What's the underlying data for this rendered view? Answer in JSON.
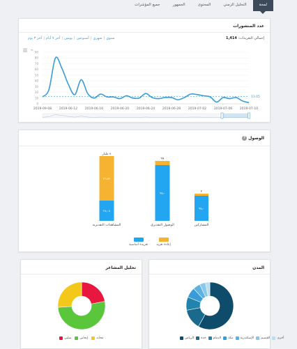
{
  "tabs": [
    {
      "label": "لمحة",
      "active": true
    },
    {
      "label": "التحليل الزمني"
    },
    {
      "label": "المحتوى"
    },
    {
      "label": "الجمهور"
    },
    {
      "label": "جميع المؤشرات"
    }
  ],
  "posts_panel": {
    "title": "عدد المنشورات",
    "total_label": "إجمالي التغريدات:",
    "total_value": "1,414",
    "ranges": [
      "سنوي",
      "شهري",
      "أسبوعين",
      "يومين",
      "آخر ٧ أيام",
      "آخر ٣ يوم"
    ],
    "avg_label": "13.05",
    "chart_data": {
      "type": "line",
      "x": [
        "2019-09-08",
        "2019-06-09",
        "2019-06-10",
        "2019-06-11",
        "2019-06-12",
        "2019-06-13",
        "2019-06-14",
        "2019-06-15",
        "2019-06-16",
        "2019-06-17",
        "2019-06-18",
        "2019-06-19",
        "2019-06-20",
        "2019-06-21",
        "2019-06-22",
        "2019-06-23",
        "2019-06-24",
        "2019-06-25",
        "2019-06-26",
        "2019-06-27",
        "2019-06-28",
        "2019-06-29",
        "2019-06-30",
        "2019-07-01",
        "2019-07-02",
        "2019-07-03",
        "2019-07-04",
        "2019-07-05",
        "2019-07-06",
        "2019-07-07",
        "2019-07-08",
        "2019-07-09",
        "2019-07-10"
      ],
      "values": [
        12,
        25,
        80,
        62,
        34,
        16,
        42,
        18,
        10,
        17,
        12,
        12,
        9,
        14,
        10,
        10,
        18,
        11,
        9,
        11,
        11,
        7,
        11,
        17,
        16,
        14,
        12,
        3,
        11,
        9,
        11,
        5,
        2
      ],
      "xticks": [
        "2019-09-08",
        "2019-06-12",
        "2019-06-16",
        "2019-06-20",
        "2019-06-24",
        "2019-06-28",
        "2019-07-02",
        "2019-07-06",
        "2019-07-10"
      ],
      "ylim": [
        0,
        90
      ],
      "average": 13.05
    }
  },
  "reach_panel": {
    "title": "الوصول",
    "help": "?",
    "chart_data": {
      "type": "bar",
      "categories": [
        "المشاهدات التقديرية",
        "الوصول التقديري",
        "المشاركين"
      ],
      "series": [
        {
          "name": "تغريدة أساسية",
          "values": [
            29,
            80,
            36
          ]
        },
        {
          "name": "إعادة تغريد",
          "values": [
            64,
            6,
            3
          ]
        }
      ],
      "data_labels": {
        "totals": [
          "٨ مليار",
          "٩٩",
          "٢"
        ],
        "retweets": [
          "٥٦٫٥٨",
          "",
          ""
        ],
        "originals": [
          "٢٥٫٠٥",
          "٧٥٫٠",
          "٧٥٫٠"
        ]
      },
      "ylim": [
        0,
        100
      ]
    }
  },
  "sentiment_panel": {
    "title": "تحليل المشاعر",
    "chart_data": {
      "type": "pie",
      "labels": [
        "سلبي",
        "إيجابي",
        "محايد"
      ],
      "values": [
        22,
        52,
        26
      ],
      "colors": [
        "#e8173f",
        "#5ac63c",
        "#f3c81b"
      ]
    }
  },
  "cities_panel": {
    "title": "المدن",
    "chart_data": {
      "type": "pie",
      "labels": [
        "الرياض",
        "جدة",
        "الدمام",
        "مكة",
        "الإسكندرية",
        "القصيم",
        "أخرى"
      ],
      "values": [
        58,
        14,
        9,
        7,
        5,
        4,
        3
      ],
      "colors": [
        "#0f4c6b",
        "#1a6a8d",
        "#2283ad",
        "#3a9bd6",
        "#5db0e0",
        "#8ac8ea",
        "#b8def2"
      ]
    }
  },
  "colors": {
    "blue": "#22a6f2",
    "orange": "#f5b331",
    "line": "#3a9bd6",
    "accent": "#3c4a5a"
  }
}
